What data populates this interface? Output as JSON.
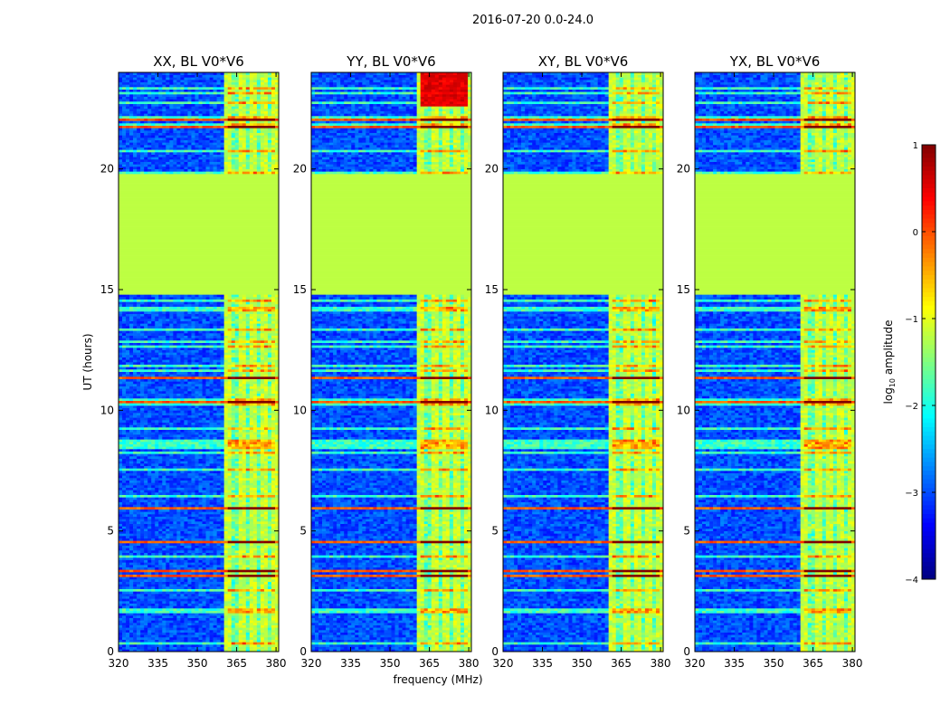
{
  "figure_title": "2016-07-20 0.0-24.0",
  "chart_data": {
    "type": "heatmap",
    "title": "2016-07-20 0.0-24.0",
    "xlabel": "frequency (MHz)",
    "ylabel": "UT (hours)",
    "xlim": [
      320,
      381
    ],
    "ylim": [
      0,
      24
    ],
    "xticks": [
      320,
      335,
      350,
      365,
      380
    ],
    "yticks": [
      0,
      5,
      10,
      15,
      20
    ],
    "panels": [
      {
        "name": "XX",
        "title": "XX, BL V0*V6"
      },
      {
        "name": "YY",
        "title": "YY, BL V0*V6"
      },
      {
        "name": "XY",
        "title": "XY, BL V0*V6"
      },
      {
        "name": "YX",
        "title": "YX, BL V0*V6"
      }
    ],
    "colorbar": {
      "label": "log10 amplitude",
      "label_main": "log",
      "label_sub": "10",
      "label_rest": " amplitude",
      "range": [
        -4,
        1
      ],
      "ticks": [
        -4,
        -3,
        -2,
        -1,
        0,
        1
      ],
      "tick_labels": [
        "−4",
        "−3",
        "−2",
        "−1",
        "0",
        "1"
      ],
      "colormap": "jet"
    },
    "flagged_uniform_band": {
      "ut_start": 14.8,
      "ut_end": 19.8,
      "log10_amplitude": -1.2
    },
    "active_frequency_band_mhz": [
      361,
      380
    ],
    "line_channels_mhz": [
      361.5,
      362.5,
      366.5,
      367.5,
      370.5,
      371.5,
      375.5,
      376.5,
      379.5,
      380.5
    ]
  }
}
